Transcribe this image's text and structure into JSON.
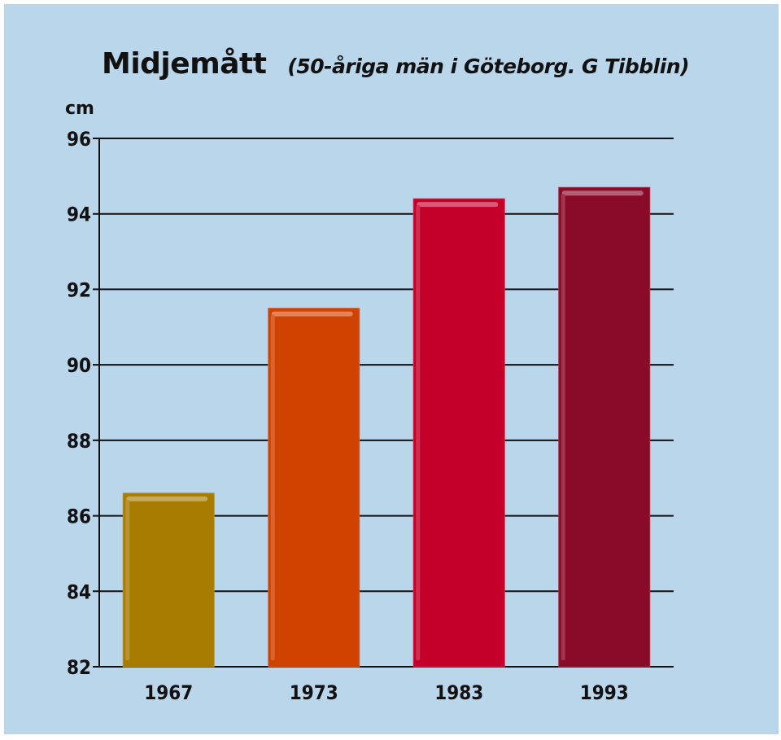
{
  "chart_data": {
    "type": "bar",
    "title": "Midjemått",
    "subtitle": "(50-åriga män i Göteborg. G Tibblin)",
    "ylabel": "cm",
    "categories": [
      "1967",
      "1973",
      "1983",
      "1993"
    ],
    "values": [
      86.6,
      91.5,
      94.4,
      94.7
    ],
    "ylim": [
      82,
      96
    ],
    "yticks": [
      82,
      84,
      86,
      88,
      90,
      92,
      94,
      96
    ],
    "grid": true,
    "colors": [
      "#a87c00",
      "#d04200",
      "#c4002a",
      "#8a0a2a"
    ],
    "background": "#bad6eb"
  }
}
